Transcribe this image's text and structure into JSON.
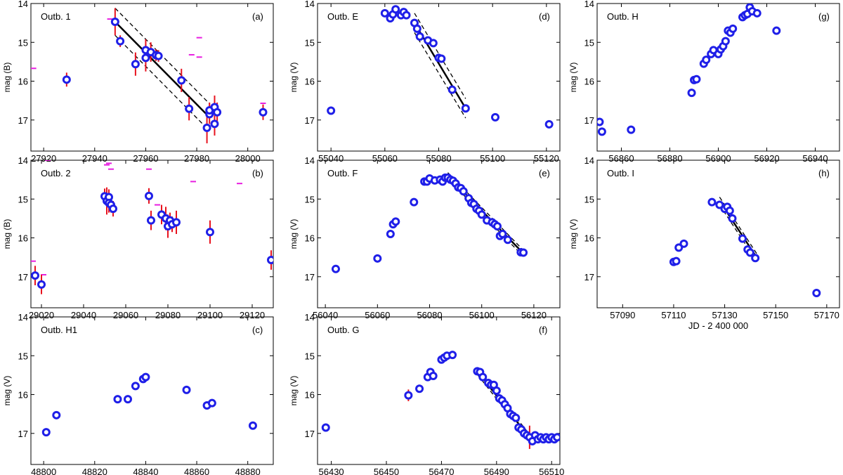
{
  "figure": {
    "colors": {
      "point": "#1f1fe8",
      "errorbar": "#e8121e",
      "limit": "#e81ee0",
      "fit": "#000000"
    }
  },
  "chart_data": [
    {
      "id": "a",
      "type": "scatter",
      "title": "Outb. 1",
      "panel_label": "(a)",
      "ylabel": "mag (B)",
      "xlabel": "",
      "xlim": [
        27915,
        28010
      ],
      "ylim": [
        17.8,
        14.0
      ],
      "xticks": [
        27920,
        27940,
        27960,
        27980,
        28000
      ],
      "yticks": [
        14,
        15,
        16,
        17
      ],
      "points": [
        {
          "x": 27929,
          "y": 15.96,
          "err": 0.18
        },
        {
          "x": 27948,
          "y": 14.47,
          "err": 0.35
        },
        {
          "x": 27950,
          "y": 14.97,
          "err": 0.15
        },
        {
          "x": 27956,
          "y": 15.56,
          "err": 0.3
        },
        {
          "x": 27960,
          "y": 15.2,
          "err": 0.28
        },
        {
          "x": 27960,
          "y": 15.4,
          "err": 0.35
        },
        {
          "x": 27962,
          "y": 15.25,
          "err": 0.25
        },
        {
          "x": 27964,
          "y": 15.33,
          "err": 0.15
        },
        {
          "x": 27965,
          "y": 15.35,
          "err": 0.15
        },
        {
          "x": 27974,
          "y": 15.98,
          "err": 0.3
        },
        {
          "x": 27977,
          "y": 16.71,
          "err": 0.3
        },
        {
          "x": 27984,
          "y": 17.2,
          "err": 0.4
        },
        {
          "x": 27985,
          "y": 16.85,
          "err": 0.25
        },
        {
          "x": 27985,
          "y": 16.75,
          "err": 0.2
        },
        {
          "x": 27987,
          "y": 16.67,
          "err": 0.3
        },
        {
          "x": 27987,
          "y": 17.1,
          "err": 0.3
        },
        {
          "x": 27988,
          "y": 16.8,
          "err": 0.25
        },
        {
          "x": 28006,
          "y": 16.8,
          "err": 0.2
        }
      ],
      "limits": [
        {
          "x": 27916,
          "y": 15.67
        },
        {
          "x": 27946,
          "y": 14.4
        },
        {
          "x": 27954,
          "y": 13.97
        },
        {
          "x": 27978,
          "y": 15.32
        },
        {
          "x": 27981,
          "y": 14.88
        },
        {
          "x": 27981,
          "y": 15.38
        },
        {
          "x": 27985,
          "y": 16.75
        },
        {
          "x": 27988,
          "y": 16.8
        },
        {
          "x": 28006,
          "y": 16.57
        }
      ],
      "fit": {
        "x": [
          27948,
          27985
        ],
        "y": [
          14.47,
          16.93
        ],
        "band": 0.35
      }
    },
    {
      "id": "d",
      "type": "scatter",
      "title": "Outb. E",
      "panel_label": "(d)",
      "ylabel": "mag (V)",
      "xlabel": "",
      "xlim": [
        55035,
        55125
      ],
      "ylim": [
        17.8,
        14.0
      ],
      "xticks": [
        55040,
        55060,
        55080,
        55100,
        55120
      ],
      "yticks": [
        14,
        15,
        16,
        17
      ],
      "points": [
        {
          "x": 55040,
          "y": 16.76
        },
        {
          "x": 55060,
          "y": 14.25
        },
        {
          "x": 55062,
          "y": 14.38
        },
        {
          "x": 55063,
          "y": 14.28
        },
        {
          "x": 55064,
          "y": 14.15
        },
        {
          "x": 55066,
          "y": 14.3
        },
        {
          "x": 55067,
          "y": 14.22
        },
        {
          "x": 55068,
          "y": 14.3
        },
        {
          "x": 55071,
          "y": 14.5
        },
        {
          "x": 55072,
          "y": 14.65
        },
        {
          "x": 55073,
          "y": 14.85
        },
        {
          "x": 55076,
          "y": 14.95
        },
        {
          "x": 55078,
          "y": 15.02
        },
        {
          "x": 55080,
          "y": 15.4
        },
        {
          "x": 55081,
          "y": 15.42
        },
        {
          "x": 55085,
          "y": 16.22
        },
        {
          "x": 55090,
          "y": 16.7
        },
        {
          "x": 55101,
          "y": 16.93
        },
        {
          "x": 55121,
          "y": 17.11
        }
      ],
      "limits": [],
      "fit": {
        "x": [
          55071,
          55090
        ],
        "y": [
          14.5,
          16.7
        ],
        "band": 0.25
      }
    },
    {
      "id": "g",
      "type": "scatter",
      "title": "Outb. H",
      "panel_label": "(g)",
      "ylabel": "mag (V)",
      "xlabel": "",
      "xlim": [
        56850,
        56950
      ],
      "ylim": [
        17.8,
        14.0
      ],
      "xticks": [
        56860,
        56880,
        56900,
        56920,
        56940
      ],
      "yticks": [
        14,
        15,
        16,
        17
      ],
      "points": [
        {
          "x": 56851,
          "y": 17.05
        },
        {
          "x": 56852,
          "y": 17.3
        },
        {
          "x": 56864,
          "y": 17.25
        },
        {
          "x": 56889,
          "y": 16.3
        },
        {
          "x": 56890,
          "y": 15.97
        },
        {
          "x": 56891,
          "y": 15.95
        },
        {
          "x": 56894,
          "y": 15.55
        },
        {
          "x": 56895,
          "y": 15.45
        },
        {
          "x": 56897,
          "y": 15.3
        },
        {
          "x": 56898,
          "y": 15.2
        },
        {
          "x": 56900,
          "y": 15.3
        },
        {
          "x": 56901,
          "y": 15.18
        },
        {
          "x": 56902,
          "y": 15.1
        },
        {
          "x": 56903,
          "y": 14.97
        },
        {
          "x": 56904,
          "y": 14.7
        },
        {
          "x": 56905,
          "y": 14.75
        },
        {
          "x": 56906,
          "y": 14.65
        },
        {
          "x": 56910,
          "y": 14.35
        },
        {
          "x": 56911,
          "y": 14.3
        },
        {
          "x": 56912,
          "y": 14.27
        },
        {
          "x": 56913,
          "y": 14.1
        },
        {
          "x": 56914,
          "y": 14.2
        },
        {
          "x": 56916,
          "y": 14.25
        },
        {
          "x": 56924,
          "y": 14.7
        }
      ],
      "limits": [],
      "fit": null
    },
    {
      "id": "b",
      "type": "scatter",
      "title": "Outb. 2",
      "panel_label": "(b)",
      "ylabel": "mag (B)",
      "xlabel": "",
      "xlim": [
        29015,
        29130
      ],
      "ylim": [
        17.8,
        14.0
      ],
      "xticks": [
        29020,
        29040,
        29060,
        29080,
        29100,
        29120
      ],
      "yticks": [
        14,
        15,
        16,
        17
      ],
      "points": [
        {
          "x": 29017,
          "y": 16.97,
          "err": 0.25
        },
        {
          "x": 29020,
          "y": 17.2,
          "err": 0.25
        },
        {
          "x": 29050,
          "y": 14.93,
          "err": 0.2
        },
        {
          "x": 29051,
          "y": 15.05,
          "err": 0.35
        },
        {
          "x": 29052,
          "y": 14.95,
          "err": 0.2
        },
        {
          "x": 29052,
          "y": 15.1,
          "err": 0.25
        },
        {
          "x": 29053,
          "y": 15.15,
          "err": 0.2
        },
        {
          "x": 29054,
          "y": 15.25,
          "err": 0.2
        },
        {
          "x": 29071,
          "y": 14.92,
          "err": 0.2
        },
        {
          "x": 29072,
          "y": 15.55,
          "err": 0.25
        },
        {
          "x": 29077,
          "y": 15.4,
          "err": 0.25
        },
        {
          "x": 29079,
          "y": 15.5,
          "err": 0.3
        },
        {
          "x": 29080,
          "y": 15.7,
          "err": 0.3
        },
        {
          "x": 29081,
          "y": 15.55,
          "err": 0.2
        },
        {
          "x": 29082,
          "y": 15.65,
          "err": 0.2
        },
        {
          "x": 29084,
          "y": 15.6,
          "err": 0.3
        },
        {
          "x": 29100,
          "y": 15.85,
          "err": 0.3
        },
        {
          "x": 29129,
          "y": 16.57,
          "err": 0.25
        }
      ],
      "limits": [
        {
          "x": 29016,
          "y": 16.6
        },
        {
          "x": 29021,
          "y": 16.95
        },
        {
          "x": 29023,
          "y": 14.0
        },
        {
          "x": 29051,
          "y": 14.12
        },
        {
          "x": 29052,
          "y": 14.08
        },
        {
          "x": 29053,
          "y": 14.23
        },
        {
          "x": 29071,
          "y": 14.23
        },
        {
          "x": 29075,
          "y": 15.15
        },
        {
          "x": 29092,
          "y": 14.55
        },
        {
          "x": 29114,
          "y": 14.6
        }
      ],
      "fit": null
    },
    {
      "id": "e",
      "type": "scatter",
      "title": "Outb. F",
      "panel_label": "(e)",
      "ylabel": "mag (V)",
      "xlabel": "",
      "xlim": [
        56037,
        56130
      ],
      "ylim": [
        17.8,
        14.0
      ],
      "xticks": [
        56040,
        56060,
        56080,
        56100,
        56120
      ],
      "yticks": [
        14,
        15,
        16,
        17
      ],
      "points": [
        {
          "x": 56044,
          "y": 16.8
        },
        {
          "x": 56060,
          "y": 16.53
        },
        {
          "x": 56065,
          "y": 15.9
        },
        {
          "x": 56066,
          "y": 15.65
        },
        {
          "x": 56067,
          "y": 15.58
        },
        {
          "x": 56074,
          "y": 15.08
        },
        {
          "x": 56078,
          "y": 14.55
        },
        {
          "x": 56079,
          "y": 14.55
        },
        {
          "x": 56080,
          "y": 14.47
        },
        {
          "x": 56082,
          "y": 14.52
        },
        {
          "x": 56084,
          "y": 14.5
        },
        {
          "x": 56085,
          "y": 14.55
        },
        {
          "x": 56086,
          "y": 14.45
        },
        {
          "x": 56087,
          "y": 14.45
        },
        {
          "x": 56088,
          "y": 14.5
        },
        {
          "x": 56089,
          "y": 14.53
        },
        {
          "x": 56090,
          "y": 14.6
        },
        {
          "x": 56091,
          "y": 14.7
        },
        {
          "x": 56092,
          "y": 14.72
        },
        {
          "x": 56093,
          "y": 14.8
        },
        {
          "x": 56095,
          "y": 14.98
        },
        {
          "x": 56096,
          "y": 15.1
        },
        {
          "x": 56097,
          "y": 15.13
        },
        {
          "x": 56098,
          "y": 15.25
        },
        {
          "x": 56099,
          "y": 15.3
        },
        {
          "x": 56100,
          "y": 15.4
        },
        {
          "x": 56102,
          "y": 15.55
        },
        {
          "x": 56104,
          "y": 15.6
        },
        {
          "x": 56105,
          "y": 15.65
        },
        {
          "x": 56106,
          "y": 15.7
        },
        {
          "x": 56107,
          "y": 15.95
        },
        {
          "x": 56108,
          "y": 15.9
        },
        {
          "x": 56110,
          "y": 16.05
        },
        {
          "x": 56115,
          "y": 16.37
        },
        {
          "x": 56116,
          "y": 16.38
        }
      ],
      "limits": [],
      "fit": {
        "x": [
          56087,
          56116
        ],
        "y": [
          14.4,
          16.4
        ],
        "band": 0.08
      }
    },
    {
      "id": "h",
      "type": "scatter",
      "title": "Outb. I",
      "panel_label": "(h)",
      "ylabel": "mag (V)",
      "xlabel": "JD - 2 400 000",
      "xlim": [
        57080,
        57175
      ],
      "ylim": [
        17.8,
        14.0
      ],
      "xticks": [
        57090,
        57110,
        57130,
        57150,
        57170
      ],
      "yticks": [
        14,
        15,
        16,
        17
      ],
      "points": [
        {
          "x": 57110,
          "y": 16.62
        },
        {
          "x": 57111,
          "y": 16.6
        },
        {
          "x": 57112,
          "y": 16.25
        },
        {
          "x": 57114,
          "y": 16.15
        },
        {
          "x": 57125,
          "y": 15.08
        },
        {
          "x": 57128,
          "y": 15.15
        },
        {
          "x": 57130,
          "y": 15.25
        },
        {
          "x": 57131,
          "y": 15.2
        },
        {
          "x": 57132,
          "y": 15.3
        },
        {
          "x": 57133,
          "y": 15.5
        },
        {
          "x": 57137,
          "y": 16.02
        },
        {
          "x": 57139,
          "y": 16.3
        },
        {
          "x": 57140,
          "y": 16.38
        },
        {
          "x": 57142,
          "y": 16.52
        },
        {
          "x": 57166,
          "y": 17.42
        }
      ],
      "limits": [],
      "fit": {
        "x": [
          57128,
          57143
        ],
        "y": [
          15.05,
          16.55
        ],
        "band": 0.1
      }
    },
    {
      "id": "c",
      "type": "scatter",
      "title": "Outb. H1",
      "panel_label": "(c)",
      "ylabel": "mag (V)",
      "xlabel": "JD - 2 400 000",
      "xlim": [
        48795,
        48890
      ],
      "ylim": [
        17.8,
        14.0
      ],
      "xticks": [
        48800,
        48820,
        48840,
        48860,
        48880
      ],
      "yticks": [
        14,
        15,
        16,
        17
      ],
      "points": [
        {
          "x": 48801,
          "y": 16.97
        },
        {
          "x": 48805,
          "y": 16.53
        },
        {
          "x": 48829,
          "y": 16.12
        },
        {
          "x": 48833,
          "y": 16.12
        },
        {
          "x": 48836,
          "y": 15.78
        },
        {
          "x": 48839,
          "y": 15.6
        },
        {
          "x": 48840,
          "y": 15.55
        },
        {
          "x": 48856,
          "y": 15.88
        },
        {
          "x": 48864,
          "y": 16.28
        },
        {
          "x": 48866,
          "y": 16.22
        },
        {
          "x": 48882,
          "y": 16.8
        }
      ],
      "limits": [],
      "fit": null
    },
    {
      "id": "f",
      "type": "scatter",
      "title": "Outb. G",
      "panel_label": "(f)",
      "ylabel": "mag (V)",
      "xlabel": "JD - 2 400 000",
      "xlim": [
        56425,
        56513
      ],
      "ylim": [
        17.8,
        14.0
      ],
      "xticks": [
        56430,
        56450,
        56470,
        56490,
        56510
      ],
      "yticks": [
        14,
        15,
        16,
        17
      ],
      "points": [
        {
          "x": 56428,
          "y": 16.85
        },
        {
          "x": 56458,
          "y": 16.02,
          "err": 0.15
        },
        {
          "x": 56462,
          "y": 15.85
        },
        {
          "x": 56465,
          "y": 15.55
        },
        {
          "x": 56466,
          "y": 15.42
        },
        {
          "x": 56467,
          "y": 15.52
        },
        {
          "x": 56470,
          "y": 15.1
        },
        {
          "x": 56471,
          "y": 15.05
        },
        {
          "x": 56472,
          "y": 15.0
        },
        {
          "x": 56474,
          "y": 14.98
        },
        {
          "x": 56483,
          "y": 15.4
        },
        {
          "x": 56484,
          "y": 15.42
        },
        {
          "x": 56485,
          "y": 15.55
        },
        {
          "x": 56487,
          "y": 15.7
        },
        {
          "x": 56488,
          "y": 15.75
        },
        {
          "x": 56489,
          "y": 15.75
        },
        {
          "x": 56490,
          "y": 15.9
        },
        {
          "x": 56491,
          "y": 16.1
        },
        {
          "x": 56492,
          "y": 16.15
        },
        {
          "x": 56493,
          "y": 16.25
        },
        {
          "x": 56494,
          "y": 16.35
        },
        {
          "x": 56495,
          "y": 16.5
        },
        {
          "x": 56496,
          "y": 16.55
        },
        {
          "x": 56497,
          "y": 16.6
        },
        {
          "x": 56498,
          "y": 16.85
        },
        {
          "x": 56499,
          "y": 16.9
        },
        {
          "x": 56500,
          "y": 17.0
        },
        {
          "x": 56501,
          "y": 17.05
        },
        {
          "x": 56502,
          "y": 17.1,
          "err": 0.3
        },
        {
          "x": 56503,
          "y": 17.2
        },
        {
          "x": 56504,
          "y": 17.05
        },
        {
          "x": 56505,
          "y": 17.15
        },
        {
          "x": 56506,
          "y": 17.1
        },
        {
          "x": 56507,
          "y": 17.15
        },
        {
          "x": 56508,
          "y": 17.1
        },
        {
          "x": 56509,
          "y": 17.15
        },
        {
          "x": 56510,
          "y": 17.1
        },
        {
          "x": 56511,
          "y": 17.15
        },
        {
          "x": 56512,
          "y": 17.1
        }
      ],
      "limits": [],
      "fit": {
        "x": [
          56483,
          56503
        ],
        "y": [
          15.4,
          17.2
        ],
        "band": 0.08
      }
    }
  ]
}
